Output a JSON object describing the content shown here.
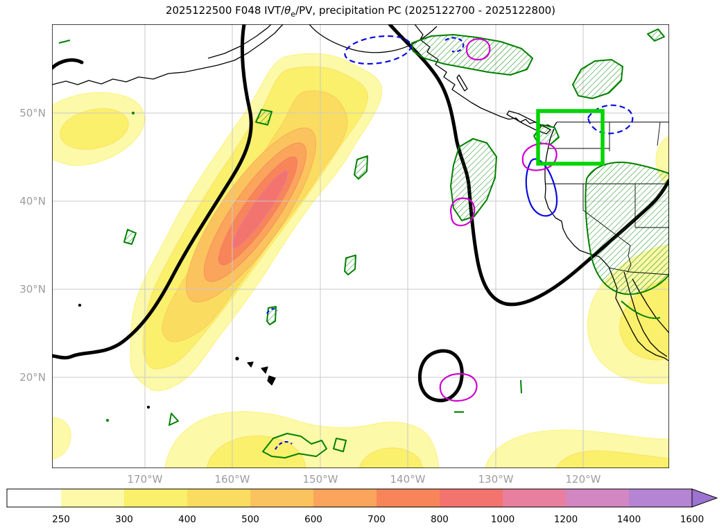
{
  "title": {
    "pre": "2025122500 F048 IVT/",
    "theta": "θ",
    "sub": "e",
    "post": "/PV, precipitation PC (2025122700 - 2025122800)",
    "full": "2025122500 F048 IVT/θe/PV, precipitation PC (2025122700 - 2025122800)"
  },
  "axes": {
    "y_ticks": [
      "50°N",
      "40°N",
      "30°N",
      "20°N"
    ],
    "x_ticks": [
      "170°W",
      "160°W",
      "150°W",
      "140°W",
      "130°W",
      "120°W"
    ]
  },
  "colorbar": {
    "tick_labels": [
      "250",
      "300",
      "400",
      "500",
      "600",
      "700",
      "800",
      "1000",
      "1200",
      "1400",
      "1600"
    ],
    "segment_colors": [
      "#ffffff",
      "#fcf9a8",
      "#faf06b",
      "#fadd60",
      "#fbc35e",
      "#faa55b",
      "#f78559",
      "#f3746e",
      "#e97f9e",
      "#d287c2",
      "#b584d3"
    ],
    "arrow_color": "#9d73d1"
  },
  "chart_data": {
    "type": "heatmap",
    "variant": "filled-contour map (IVT shading) with overlaid line contours on a North Pacific lat/lon map",
    "title": "2025122500 F048 IVT/θe/PV, precipitation PC (2025122700 - 2025122800)",
    "model_init": "2025122500",
    "forecast_hour": "F048",
    "precip_pc_window": [
      "2025122700",
      "2025122800"
    ],
    "x_axis": {
      "tick_labels": [
        "170°W",
        "160°W",
        "150°W",
        "140°W",
        "130°W",
        "120°W"
      ]
    },
    "y_axis": {
      "tick_labels": [
        "50°N",
        "40°N",
        "30°N",
        "20°N"
      ]
    },
    "map_extent_approx": {
      "lon": [
        "181°W",
        "110°W"
      ],
      "lat": [
        "10°N",
        "60°N"
      ]
    },
    "grid": true,
    "ivt_filled_contours": {
      "levels": [
        250,
        300,
        400,
        500,
        600,
        700,
        800,
        1000,
        1200,
        1400,
        1600
      ],
      "extend_max_arrow": true,
      "map_max_shaded_level_approx": 800,
      "main_feature": "elongated SW-NE IVT plume over the central North Pacific, core ≈ 800-1000 near 155°W 33°N",
      "secondary_maxima": [
        "northwest corner ≈ 175°W 48°N (≈300)",
        "south of Hawaii along 15°N (≈300)",
        "subtropical band near 118°W 27°N (≈300)",
        "south edge near 115°W 12°N (≈300)"
      ]
    },
    "overlays": [
      {
        "name": "pv-theta-e-contour",
        "style": "thick solid black lines (tropopause/PV)"
      },
      {
        "name": "precip-pc-positive",
        "style": "green contours with diagonal hatching"
      },
      {
        "name": "precip-pc-negative",
        "style": "blue dashed contours"
      },
      {
        "name": "precip-pc-secondary",
        "style": "magenta contours"
      },
      {
        "name": "target-region-box",
        "style": "thick bright green rectangle",
        "approx_region": "125°W-117.5°W, 44°N-50°N (Pacific Northwest)"
      }
    ],
    "style_colors": {
      "pv_contour": "#000000",
      "green_contour": "#008000",
      "green_hatch": "#008000",
      "blue_contour": "#0a0ae0",
      "magenta_contour": "#cf00cf",
      "target_box": "#00d500",
      "coastline": "#000000",
      "state_border": "#000000",
      "gridline": "#c9c9c9",
      "axis_tick_label": "#9c9c9c",
      "frame": "#000000"
    }
  }
}
